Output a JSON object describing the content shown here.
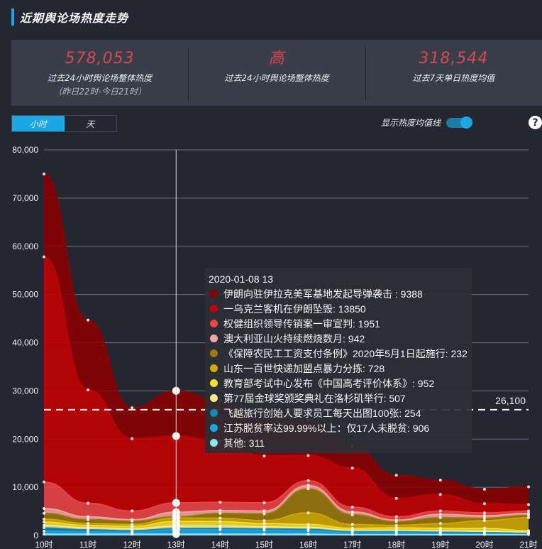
{
  "header": {
    "title": "近期舆论场热度走势"
  },
  "stats": [
    {
      "value": "578,053",
      "label": "过去24小时舆论场整体热度",
      "sub": "（昨日22时-今日21时）"
    },
    {
      "value": "高",
      "label": "过去24小时舆论场整体热度",
      "sub": ""
    },
    {
      "value": "318,544",
      "label": "过去7天单日热度均值",
      "sub": ""
    }
  ],
  "tabs": [
    {
      "label": "小时",
      "active": true
    },
    {
      "label": "天",
      "active": false
    }
  ],
  "toggle": {
    "label": "显示热度均值线",
    "on": true
  },
  "help": {
    "icon": "?"
  },
  "tooltip": {
    "title": "2020-01-08 13",
    "rows": [
      {
        "label": "伊朗向驻伊拉克美军基地发起导弹袭击 : 9388",
        "color": "#8b0000"
      },
      {
        "label": "一乌克兰客机在伊朗坠毁: 13850",
        "color": "#c40000"
      },
      {
        "label": "权健组织领导传销案一审宣判: 1951",
        "color": "#ef4444"
      },
      {
        "label": "澳大利亚山火持续燃烧数月: 942",
        "color": "#f4a6a0"
      },
      {
        "label": "《保障农民工工资支付条例》2020年5月1日起施行: 232",
        "color": "#9a7a0a"
      },
      {
        "label": "山东一百世快递加盟点暴力分拣: 728",
        "color": "#d4aa00"
      },
      {
        "label": "教育部考试中心发布《中国高考评价体系》: 952",
        "color": "#f6e02a"
      },
      {
        "label": "第77届金球奖颁奖典礼在洛杉矶举行: 507",
        "color": "#f8ec8c"
      },
      {
        "label": "飞越旅行创始人要求员工每天出图100张: 254",
        "color": "#1686b4"
      },
      {
        "label": "江苏脱贫率达99.99%以上：仅17人未脱贫: 906",
        "color": "#1aa7e3"
      },
      {
        "label": "其他: 311",
        "color": "#8fe3f7"
      }
    ]
  },
  "chart_data": {
    "type": "area",
    "stacked": true,
    "title": "近期舆论场热度走势",
    "xlabel": "",
    "ylabel": "",
    "categories": [
      "10时",
      "11时",
      "12时",
      "13时",
      "14时",
      "15时",
      "16时",
      "17时",
      "18时",
      "19时",
      "20时",
      "21时"
    ],
    "yticks": [
      "0",
      "10,000",
      "20,000",
      "30,000",
      "40,000",
      "50,000",
      "60,000",
      "70,000",
      "80,000"
    ],
    "ylim": [
      0,
      80000
    ],
    "grid": true,
    "average_line": {
      "value": 26100,
      "label": "26,100"
    },
    "hover_index": 3,
    "series": [
      {
        "name": "其他",
        "color": "#8fe3f7",
        "values": [
          300,
          300,
          300,
          311,
          300,
          300,
          300,
          200,
          200,
          200,
          200,
          200
        ]
      },
      {
        "name": "江苏脱贫率达99.99%以上：仅17人未脱贫",
        "color": "#1aa7e3",
        "values": [
          600,
          500,
          400,
          906,
          900,
          800,
          700,
          400,
          400,
          300,
          300,
          200
        ]
      },
      {
        "name": "飞越旅行创始人要求员工每天出图100张",
        "color": "#1686b4",
        "values": [
          700,
          400,
          300,
          254,
          300,
          300,
          300,
          200,
          200,
          200,
          100,
          100
        ]
      },
      {
        "name": "第77届金球奖颁奖典礼在洛杉矶举行",
        "color": "#f8ec8c",
        "values": [
          500,
          400,
          400,
          507,
          500,
          400,
          400,
          300,
          300,
          300,
          300,
          200
        ]
      },
      {
        "name": "教育部考试中心发布《中国高考评价体系》",
        "color": "#f6e02a",
        "values": [
          700,
          500,
          500,
          952,
          900,
          700,
          600,
          400,
          500,
          500,
          600,
          300
        ]
      },
      {
        "name": "山东一百世快递加盟点暴力分拣",
        "color": "#d4aa00",
        "values": [
          600,
          400,
          400,
          728,
          700,
          600,
          2400,
          800,
          500,
          1000,
          1600,
          2700
        ]
      },
      {
        "name": "《保障农民工工资支付条例》2020年5月1日起施行",
        "color": "#9a7a0a",
        "values": [
          1200,
          800,
          700,
          232,
          1000,
          1400,
          5000,
          2000,
          800,
          1200,
          500,
          500
        ]
      },
      {
        "name": "澳大利亚山火持续燃烧数月",
        "color": "#f4a6a0",
        "values": [
          1000,
          600,
          300,
          942,
          600,
          600,
          700,
          600,
          300,
          700,
          500,
          400
        ]
      },
      {
        "name": "权健组织领导传销案一审宣判",
        "color": "#ef4444",
        "values": [
          5500,
          2800,
          1800,
          1951,
          1700,
          1700,
          1000,
          1000,
          700,
          700,
          600,
          500
        ]
      },
      {
        "name": "一乌克兰客机在伊朗坠毁",
        "color": "#c40000",
        "values": [
          46700,
          23500,
          15000,
          13850,
          12600,
          9700,
          5200,
          8100,
          3800,
          3400,
          1900,
          1300
        ]
      },
      {
        "name": "伊朗向驻伊拉克美军基地发起导弹袭击",
        "color": "#8b0000",
        "values": [
          17200,
          14500,
          6400,
          9388,
          8500,
          8000,
          7400,
          4500,
          4800,
          3000,
          3000,
          3700
        ]
      }
    ]
  }
}
